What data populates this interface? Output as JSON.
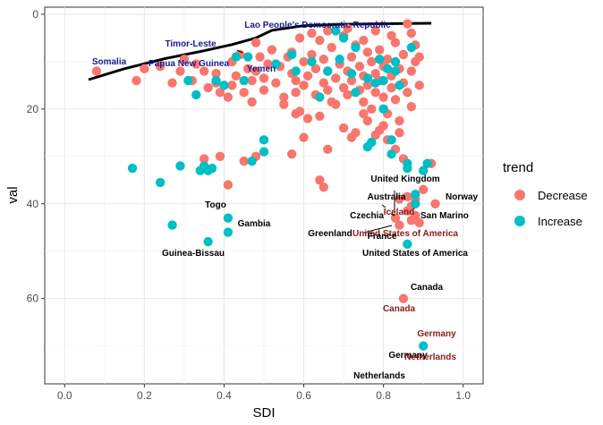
{
  "chart_data": {
    "type": "scatter",
    "xlabel": "SDI",
    "ylabel": "val",
    "xlim": [
      -0.05,
      1.05
    ],
    "ylim": [
      78,
      -1.5
    ],
    "y_reversed": true,
    "x_ticks": [
      0.0,
      0.2,
      0.4,
      0.6,
      0.8,
      1.0
    ],
    "x_tick_labels": [
      "0.0",
      "0.2",
      "0.4",
      "0.6",
      "0.8",
      "1.0"
    ],
    "y_ticks": [
      0,
      20,
      40,
      60
    ],
    "y_tick_labels": [
      "0",
      "20",
      "40",
      "60"
    ],
    "grid": true,
    "legend": {
      "title": "trend",
      "position": "right",
      "entries": [
        {
          "label": "Decrease",
          "color": "#F8766D"
        },
        {
          "label": "Increase",
          "color": "#00BFC4"
        }
      ]
    },
    "trend_line": {
      "color": "#000000",
      "x": [
        0.06,
        0.15,
        0.25,
        0.35,
        0.42,
        0.48,
        0.52,
        0.6,
        0.7,
        0.8,
        0.92
      ],
      "y": [
        13.8,
        11.5,
        9.4,
        7.7,
        6.4,
        5.0,
        3.4,
        2.4,
        2.1,
        2.0,
        1.9
      ]
    },
    "series": [
      {
        "name": "Decrease",
        "color": "#F8766D",
        "points": [
          [
            0.08,
            12.0
          ],
          [
            0.18,
            14.0
          ],
          [
            0.2,
            11.5
          ],
          [
            0.24,
            11.0
          ],
          [
            0.27,
            14.5
          ],
          [
            0.29,
            12.0
          ],
          [
            0.3,
            9.5
          ],
          [
            0.32,
            14.0
          ],
          [
            0.33,
            10.5
          ],
          [
            0.35,
            12.0
          ],
          [
            0.36,
            15.5
          ],
          [
            0.38,
            12.5
          ],
          [
            0.38,
            14.5
          ],
          [
            0.39,
            16.5
          ],
          [
            0.41,
            17.5
          ],
          [
            0.42,
            15.0
          ],
          [
            0.42,
            10.0
          ],
          [
            0.43,
            13.0
          ],
          [
            0.44,
            8.5
          ],
          [
            0.45,
            16.5
          ],
          [
            0.46,
            11.5
          ],
          [
            0.47,
            14.0
          ],
          [
            0.47,
            18.5
          ],
          [
            0.48,
            6.0
          ],
          [
            0.48,
            12.0
          ],
          [
            0.49,
            9.0
          ],
          [
            0.5,
            13.5
          ],
          [
            0.5,
            16.0
          ],
          [
            0.51,
            10.5
          ],
          [
            0.52,
            7.5
          ],
          [
            0.53,
            14.5
          ],
          [
            0.54,
            11.0
          ],
          [
            0.55,
            17.5
          ],
          [
            0.56,
            9.0
          ],
          [
            0.57,
            12.5
          ],
          [
            0.58,
            14.0
          ],
          [
            0.58,
            16.5
          ],
          [
            0.59,
            5.0
          ],
          [
            0.6,
            10.0
          ],
          [
            0.6,
            15.0
          ],
          [
            0.61,
            13.0
          ],
          [
            0.62,
            8.5
          ],
          [
            0.63,
            17.0
          ],
          [
            0.63,
            11.5
          ],
          [
            0.64,
            5.5
          ],
          [
            0.65,
            14.5
          ],
          [
            0.65,
            9.5
          ],
          [
            0.66,
            12.0
          ],
          [
            0.66,
            16.0
          ],
          [
            0.67,
            7.0
          ],
          [
            0.68,
            13.5
          ],
          [
            0.68,
            19.0
          ],
          [
            0.69,
            10.5
          ],
          [
            0.7,
            4.5
          ],
          [
            0.7,
            15.5
          ],
          [
            0.71,
            12.0
          ],
          [
            0.71,
            17.0
          ],
          [
            0.72,
            9.0
          ],
          [
            0.72,
            14.0
          ],
          [
            0.73,
            6.5
          ],
          [
            0.74,
            16.0
          ],
          [
            0.74,
            11.0
          ],
          [
            0.75,
            13.0
          ],
          [
            0.75,
            18.5
          ],
          [
            0.76,
            8.0
          ],
          [
            0.76,
            15.0
          ],
          [
            0.77,
            10.0
          ],
          [
            0.77,
            20.0
          ],
          [
            0.78,
            12.5
          ],
          [
            0.78,
            16.5
          ],
          [
            0.79,
            7.5
          ],
          [
            0.79,
            14.0
          ],
          [
            0.8,
            11.0
          ],
          [
            0.8,
            17.5
          ],
          [
            0.81,
            9.5
          ],
          [
            0.81,
            21.0
          ],
          [
            0.82,
            13.0
          ],
          [
            0.82,
            15.5
          ],
          [
            0.83,
            6.0
          ],
          [
            0.83,
            18.0
          ],
          [
            0.84,
            11.5
          ],
          [
            0.84,
            22.5
          ],
          [
            0.85,
            14.5
          ],
          [
            0.85,
            8.5
          ],
          [
            0.86,
            16.5
          ],
          [
            0.86,
            2.0
          ],
          [
            0.87,
            12.0
          ],
          [
            0.87,
            19.5
          ],
          [
            0.88,
            10.0
          ],
          [
            0.88,
            6.5
          ],
          [
            0.89,
            15.0
          ],
          [
            0.89,
            9.0
          ],
          [
            0.55,
            19.0
          ],
          [
            0.58,
            21.0
          ],
          [
            0.61,
            22.0
          ],
          [
            0.64,
            21.5
          ],
          [
            0.7,
            24.0
          ],
          [
            0.73,
            25.0
          ],
          [
            0.76,
            22.5
          ],
          [
            0.79,
            24.5
          ],
          [
            0.81,
            26.5
          ],
          [
            0.83,
            28.5
          ],
          [
            0.85,
            30.5
          ],
          [
            0.6,
            26.0
          ],
          [
            0.66,
            28.5
          ],
          [
            0.72,
            26.0
          ],
          [
            0.78,
            25.5
          ],
          [
            0.35,
            30.5
          ],
          [
            0.39,
            30.0
          ],
          [
            0.45,
            31.0
          ],
          [
            0.48,
            30.0
          ],
          [
            0.57,
            29.5
          ],
          [
            0.64,
            35.0
          ],
          [
            0.65,
            36.5
          ],
          [
            0.41,
            36.0
          ],
          [
            0.59,
            20.5
          ],
          [
            0.67,
            18.5
          ],
          [
            0.75,
            21.0
          ],
          [
            0.8,
            23.5
          ],
          [
            0.84,
            25.0
          ],
          [
            0.86,
            38.5
          ],
          [
            0.88,
            39.0
          ],
          [
            0.9,
            37.0
          ],
          [
            0.92,
            31.5
          ],
          [
            0.93,
            40.0
          ],
          [
            0.87,
            40.5
          ],
          [
            0.84,
            39.0
          ],
          [
            0.86,
            41.5
          ],
          [
            0.88,
            42.5
          ],
          [
            0.87,
            43.5
          ],
          [
            0.89,
            44.0
          ],
          [
            0.83,
            43.0
          ],
          [
            0.84,
            44.5
          ],
          [
            0.85,
            60.0
          ],
          [
            0.87,
            4.0
          ],
          [
            0.57,
            8.0
          ],
          [
            0.62,
            4.0
          ],
          [
            0.66,
            3.5
          ],
          [
            0.71,
            3.0
          ],
          [
            0.75,
            5.5
          ],
          [
            0.78,
            3.5
          ],
          [
            0.82,
            4.5
          ]
        ]
      },
      {
        "name": "Increase",
        "color": "#00BFC4",
        "points": [
          [
            0.17,
            32.5
          ],
          [
            0.24,
            35.5
          ],
          [
            0.27,
            44.5
          ],
          [
            0.29,
            32.0
          ],
          [
            0.31,
            14.0
          ],
          [
            0.33,
            17.0
          ],
          [
            0.34,
            33.0
          ],
          [
            0.35,
            32.0
          ],
          [
            0.36,
            33.0
          ],
          [
            0.37,
            32.5
          ],
          [
            0.36,
            48.0
          ],
          [
            0.38,
            14.0
          ],
          [
            0.41,
            43.0
          ],
          [
            0.41,
            46.0
          ],
          [
            0.4,
            15.0
          ],
          [
            0.43,
            9.0
          ],
          [
            0.45,
            14.0
          ],
          [
            0.46,
            9.0
          ],
          [
            0.47,
            31.0
          ],
          [
            0.5,
            26.5
          ],
          [
            0.5,
            29.0
          ],
          [
            0.53,
            10.5
          ],
          [
            0.57,
            8.5
          ],
          [
            0.58,
            12.0
          ],
          [
            0.62,
            10.0
          ],
          [
            0.64,
            17.5
          ],
          [
            0.66,
            12.0
          ],
          [
            0.68,
            3.5
          ],
          [
            0.69,
            9.5
          ],
          [
            0.7,
            5.0
          ],
          [
            0.72,
            12.5
          ],
          [
            0.73,
            16.5
          ],
          [
            0.76,
            28.0
          ],
          [
            0.77,
            27.0
          ],
          [
            0.78,
            14.5
          ],
          [
            0.79,
            9.5
          ],
          [
            0.8,
            14.0
          ],
          [
            0.81,
            11.5
          ],
          [
            0.83,
            12.0
          ],
          [
            0.84,
            15.0
          ],
          [
            0.86,
            31.5
          ],
          [
            0.86,
            32.5
          ],
          [
            0.88,
            38.0
          ],
          [
            0.88,
            40.0
          ],
          [
            0.9,
            33.0
          ],
          [
            0.9,
            70.0
          ],
          [
            0.91,
            31.5
          ],
          [
            0.86,
            48.5
          ],
          [
            0.82,
            26.5
          ],
          [
            0.82,
            29.5
          ],
          [
            0.87,
            7.0
          ],
          [
            0.83,
            10.0
          ],
          [
            0.8,
            20.0
          ],
          [
            0.76,
            13.5
          ],
          [
            0.73,
            7.0
          ]
        ]
      }
    ],
    "annotations_top": [
      {
        "text": "Lao People's Democratic Republic",
        "color": "#1a1a8c"
      },
      {
        "text": "Timor-Leste",
        "color": "#1a1a8c"
      },
      {
        "text": "Somalia",
        "color": "#1a1a8c"
      },
      {
        "text": "Papua New Guinea",
        "color": "#1a1a8c"
      },
      {
        "text": "Yemen",
        "color": "#1a1a8c"
      }
    ],
    "annotations_lower": [
      {
        "text": "United Kingdom",
        "color": "#000000"
      },
      {
        "text": "Australia",
        "color": "#000000"
      },
      {
        "text": "Norway",
        "color": "#000000"
      },
      {
        "text": "Iceland",
        "color": "#8b1a1a"
      },
      {
        "text": "Czechia",
        "color": "#000000"
      },
      {
        "text": "San Marino",
        "color": "#000000"
      },
      {
        "text": "Greenland",
        "color": "#000000"
      },
      {
        "text": "United States of America",
        "color": "#8b1a1a"
      },
      {
        "text": "France",
        "color": "#000000"
      },
      {
        "text": "United States of America",
        "color": "#000000"
      },
      {
        "text": "Togo",
        "color": "#000000"
      },
      {
        "text": "Gambia",
        "color": "#000000"
      },
      {
        "text": "Guinea-Bissau",
        "color": "#000000"
      },
      {
        "text": "Canada",
        "color": "#000000"
      },
      {
        "text": "Canada",
        "color": "#8b1a1a"
      },
      {
        "text": "Germany",
        "color": "#8b1a1a"
      },
      {
        "text": "Germany",
        "color": "#000000"
      },
      {
        "text": "Netherlands",
        "color": "#8b1a1a"
      },
      {
        "text": "Netherlands",
        "color": "#000000"
      }
    ]
  }
}
